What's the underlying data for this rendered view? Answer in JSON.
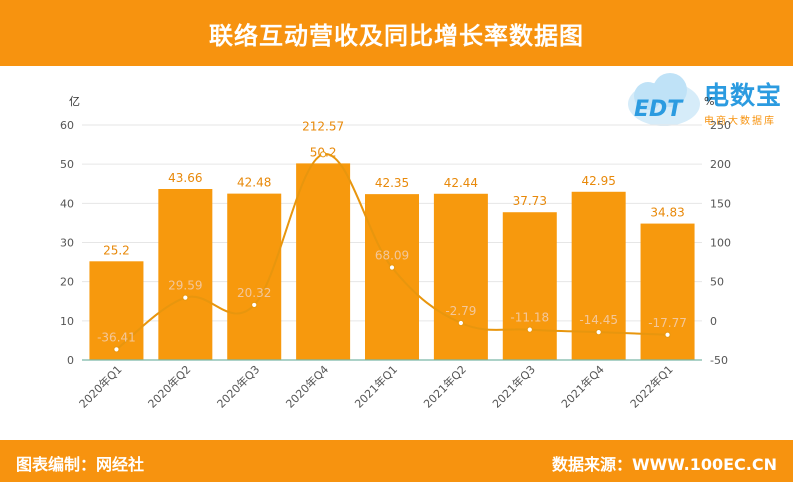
{
  "header": {
    "title": "联络互动营收及同比增长率数据图"
  },
  "footer": {
    "author": "图表编制：网经社",
    "source": "数据来源：WWW.100EC.CN"
  },
  "logo": {
    "name": "电数宝",
    "sub": "电商大数据库",
    "mark": "EDT"
  },
  "colors": {
    "accent": "#f7930f",
    "bar": "#f7990d",
    "line": "#e8960e",
    "logo_blue": "#2b9be0",
    "axis_text": "#555555"
  },
  "chart_data": {
    "type": "bar",
    "categories": [
      "2020年Q1",
      "2020年Q2",
      "2020年Q3",
      "2020年Q4",
      "2021年Q1",
      "2021年Q2",
      "2021年Q3",
      "2021年Q4",
      "2022年Q1"
    ],
    "series": [
      {
        "values": [
          25.2,
          43.66,
          42.48,
          50.2,
          42.35,
          42.44,
          37.73,
          42.95,
          34.83
        ],
        "axis": "left",
        "kind": "bar"
      },
      {
        "values": [
          -36.41,
          29.59,
          20.32,
          212.57,
          68.09,
          -2.79,
          -11.18,
          -14.45,
          -17.77
        ],
        "axis": "right",
        "kind": "line"
      }
    ],
    "bar_labels": [
      "25.2",
      "43.66",
      "42.48",
      "50.2",
      "42.35",
      "42.44",
      "37.73",
      "42.95",
      "34.83"
    ],
    "line_labels": [
      "-36.41",
      "29.59",
      "20.32",
      "212.57",
      "68.09",
      "-2.79",
      "-11.18",
      "-14.45",
      "-17.77"
    ],
    "y_left": {
      "label": "亿",
      "ylim": [
        0,
        60
      ],
      "ticks": [
        "0",
        "10",
        "20",
        "30",
        "40",
        "50",
        "60"
      ]
    },
    "y_right": {
      "label": "%",
      "ylim": [
        -50,
        250
      ],
      "ticks": [
        "-50",
        "0",
        "50",
        "100",
        "150",
        "200",
        "250"
      ]
    },
    "grid": true
  }
}
